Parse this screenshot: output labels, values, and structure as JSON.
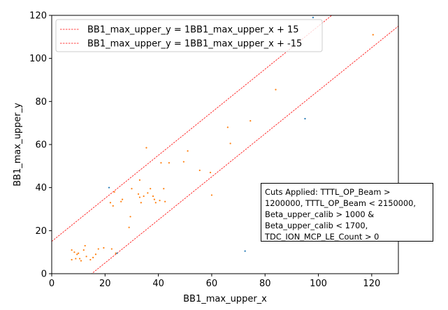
{
  "chart_data": {
    "type": "scatter",
    "xlabel": "BB1_max_upper_x",
    "ylabel": "BB1_max_upper_y",
    "xlim": [
      0,
      130
    ],
    "ylim": [
      0,
      120
    ],
    "xticks": [
      0,
      20,
      40,
      60,
      80,
      100,
      120
    ],
    "yticks": [
      0,
      20,
      40,
      60,
      80,
      100,
      120
    ],
    "grid": false,
    "legend_placement": "upper-left",
    "lines": [
      {
        "name": "BB1_max_upper_y = 1BB1_max_upper_x + 15",
        "slope": 1,
        "intercept": 15,
        "color": "#ff0000",
        "style": "dashed"
      },
      {
        "name": "BB1_max_upper_y = 1BB1_max_upper_x + -15",
        "slope": 1,
        "intercept": -15,
        "color": "#ff0000",
        "style": "dashed"
      }
    ],
    "series": [
      {
        "color": "#1f77b4",
        "points": [
          [
            21.5,
            40
          ],
          [
            98,
            119
          ],
          [
            95,
            72
          ],
          [
            72.5,
            10.5
          ],
          [
            24.5,
            9.5
          ]
        ]
      },
      {
        "color": "#ff7f0e",
        "points": [
          [
            7.5,
            6.5
          ],
          [
            7.5,
            11
          ],
          [
            8.5,
            10
          ],
          [
            9,
            7
          ],
          [
            9.5,
            9
          ],
          [
            10,
            9.5
          ],
          [
            10.5,
            7
          ],
          [
            11,
            6
          ],
          [
            12,
            11
          ],
          [
            12.5,
            13
          ],
          [
            13,
            8
          ],
          [
            14.5,
            6.5
          ],
          [
            15.5,
            7.5
          ],
          [
            16.5,
            9
          ],
          [
            17.5,
            11.5
          ],
          [
            19.5,
            12
          ],
          [
            22.5,
            11.5
          ],
          [
            22,
            33
          ],
          [
            23,
            31.5
          ],
          [
            24,
            9.5
          ],
          [
            26,
            33.5
          ],
          [
            26.5,
            34.5
          ],
          [
            29,
            21.5
          ],
          [
            29.5,
            26.5
          ],
          [
            30,
            39.5
          ],
          [
            32.5,
            37
          ],
          [
            33,
            35.5
          ],
          [
            33,
            43.5
          ],
          [
            33.5,
            33
          ],
          [
            34.5,
            36
          ],
          [
            35.5,
            58.5
          ],
          [
            36,
            37.5
          ],
          [
            37,
            39.5
          ],
          [
            38,
            36
          ],
          [
            38.5,
            34.5
          ],
          [
            39,
            33
          ],
          [
            41,
            51.5
          ],
          [
            42,
            39.5
          ],
          [
            42.5,
            33.5
          ],
          [
            44,
            51.5
          ],
          [
            49.5,
            52
          ],
          [
            51,
            57
          ],
          [
            55.5,
            48
          ],
          [
            59.5,
            47
          ],
          [
            60,
            36.5
          ],
          [
            66,
            68
          ],
          [
            67,
            60.5
          ],
          [
            74.5,
            71
          ],
          [
            84,
            85.5
          ],
          [
            120.5,
            111
          ],
          [
            23.5,
            38
          ],
          [
            40.5,
            34
          ]
        ]
      }
    ],
    "annotation": "Cuts Applied: TTTL_OP_Beam >\n1200000, TTTL_OP_Beam < 2150000,\nBeta_upper_calib > 1000 &\nBeta_upper_calib < 1700,\nTDC_ION_MCP_LE_Count > 0"
  }
}
